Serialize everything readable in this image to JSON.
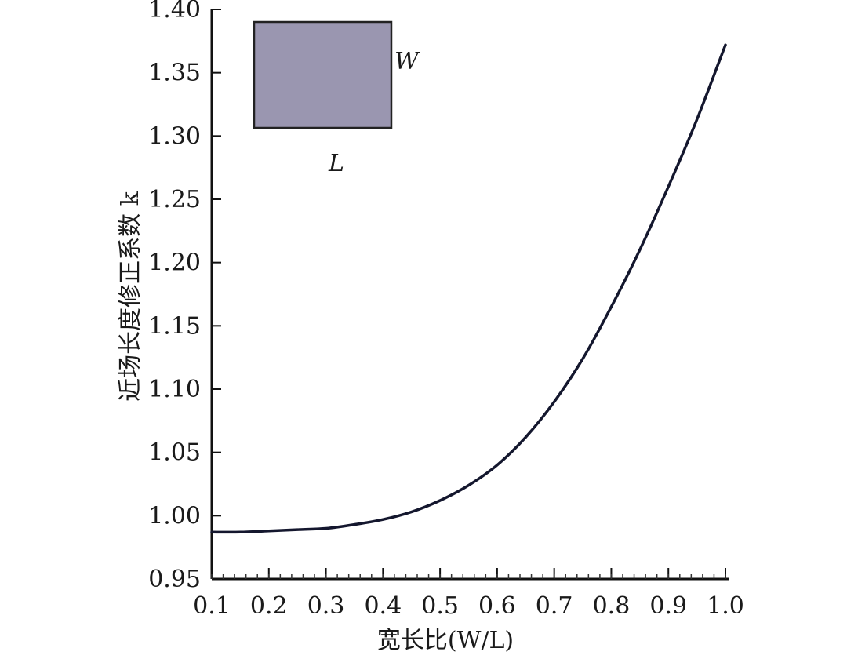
{
  "chart_data": {
    "type": "line",
    "title": "",
    "xlabel": "宽长比(W/L)",
    "ylabel": "近场长度修正系数 k",
    "xlim": [
      0.1,
      1.0
    ],
    "ylim": [
      0.95,
      1.4
    ],
    "x_ticks": [
      "0.1",
      "0.2",
      "0.3",
      "0.4",
      "0.5",
      "0.6",
      "0.7",
      "0.8",
      "0.9",
      "1.0"
    ],
    "y_ticks": [
      "0.95",
      "1.00",
      "1.05",
      "1.10",
      "1.15",
      "1.20",
      "1.25",
      "1.30",
      "1.35",
      "1.40"
    ],
    "grid": false,
    "series": [
      {
        "x": [
          0.1,
          0.15,
          0.2,
          0.25,
          0.3,
          0.35,
          0.4,
          0.45,
          0.5,
          0.55,
          0.6,
          0.65,
          0.7,
          0.75,
          0.8,
          0.85,
          0.9,
          0.95,
          1.0
        ],
        "y": [
          0.987,
          0.987,
          0.988,
          0.989,
          0.99,
          0.993,
          0.997,
          1.003,
          1.012,
          1.024,
          1.04,
          1.062,
          1.09,
          1.124,
          1.165,
          1.21,
          1.26,
          1.313,
          1.372
        ]
      }
    ],
    "inset": {
      "width_label": "W",
      "length_label": "L",
      "fill_color": "#9a96b0"
    },
    "line_color": "#14172e"
  }
}
